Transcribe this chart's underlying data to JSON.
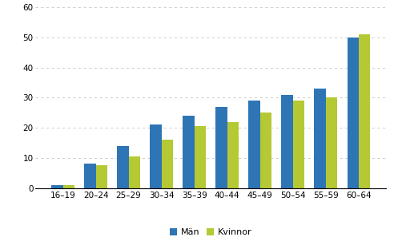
{
  "categories": [
    "16–19",
    "20–24",
    "25–29",
    "30–34",
    "35–39",
    "40–44",
    "45–49",
    "50–54",
    "55–59",
    "60–64"
  ],
  "man_values": [
    1,
    8,
    14,
    21,
    24,
    27,
    29,
    31,
    33,
    50
  ],
  "kvinnor_values": [
    1,
    7.5,
    10.5,
    16,
    20.5,
    22,
    25,
    29,
    30,
    51
  ],
  "man_color": "#2e75b6",
  "kvinnor_color": "#b5c934",
  "ylim": [
    0,
    60
  ],
  "yticks": [
    0,
    10,
    20,
    30,
    40,
    50,
    60
  ],
  "legend_man": "Män",
  "legend_kvinnor": "Kvinnor",
  "background_color": "#ffffff",
  "grid_color": "#c8c8c8"
}
